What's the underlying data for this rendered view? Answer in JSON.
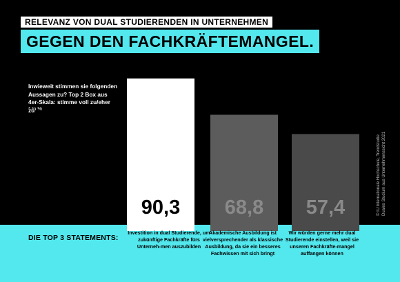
{
  "header": {
    "label": "RELEVANZ VON DUAL STUDIERENDEN IN UNTERNEHMEN",
    "headline": "GEGEN DEN FACHKRÄFTEMANGEL."
  },
  "question": "Inwieweit stimmen sie folgenden Aussagen zu? Top 2 Box aus 4er-Skala: stimme voll zu/eher zu",
  "unit": "* In %",
  "credit_line1": "© IU Internationale Hochschule, Trendstudie",
  "credit_line2": "Duales Studium aus Unternehmenssicht 2021",
  "band_title": "DIE TOP 3 STATEMENTS:",
  "colors": {
    "accent": "#52e8ee",
    "background": "#000000",
    "bar1": "#ffffff",
    "bar2": "#5c5c5c",
    "bar3": "#4a4a4a"
  },
  "chart_data": {
    "type": "bar",
    "categories": [
      "Investition in dual Studierende, um zukünftige Fachkräfte fürs Unterneh-men auszubilden",
      "Akademische Ausbildung ist vielversprechender als klassische Ausbildung, da sie ein besseres Fachwissen mit sich bringt",
      "Wir würden gerne mehr dual Studierende einstellen, weil sie unseren Fachkräfte-mangel auffangen können"
    ],
    "values": [
      90.3,
      68.8,
      57.4
    ],
    "value_labels": [
      "90,3",
      "68,8",
      "57,4"
    ],
    "ylim": [
      0,
      100
    ],
    "grid": false
  }
}
